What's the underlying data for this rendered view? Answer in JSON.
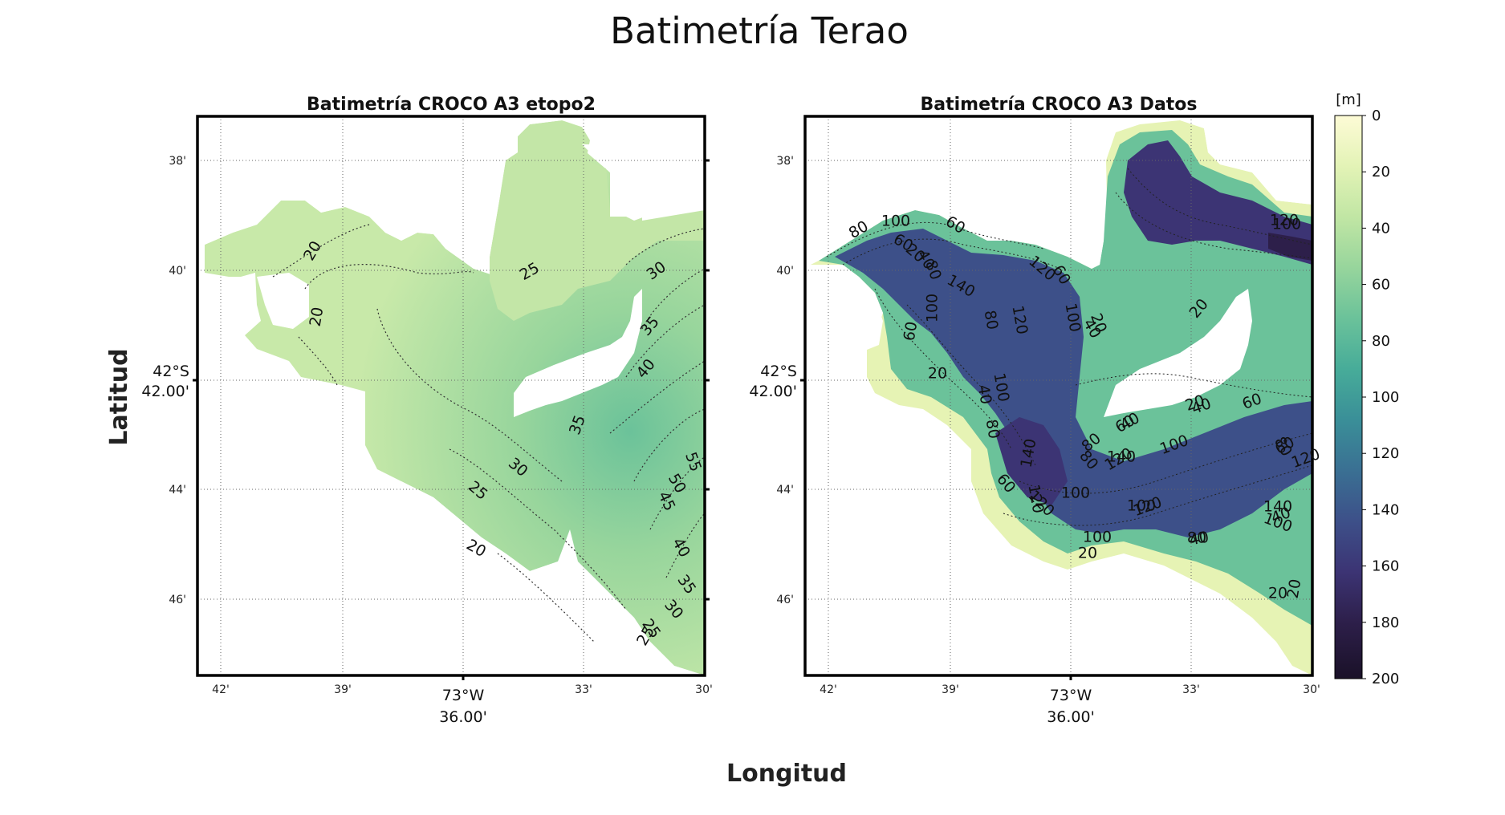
{
  "figure": {
    "title": "Batimetría Terao",
    "xlabel": "Longitud",
    "ylabel": "Latitud"
  },
  "panels": [
    {
      "title": "Batimetría CROCO A3 etopo2",
      "x_ticks": [
        "42'",
        "39'",
        "33'",
        "30'"
      ],
      "x_center_label": [
        "73°W",
        "36.00'"
      ],
      "y_ticks": [
        "38'",
        "40'",
        "44'",
        "46'"
      ],
      "y_center_label": [
        "42°S",
        "42.00'"
      ],
      "contour_labels": [
        "20",
        "25",
        "30",
        "20",
        "25",
        "35",
        "40",
        "35",
        "30",
        "25",
        "20",
        "55",
        "50",
        "45",
        "40",
        "35",
        "30",
        "25"
      ]
    },
    {
      "title": "Batimetría CROCO A3 Datos",
      "x_ticks": [
        "42'",
        "39'",
        "33'",
        "30'"
      ],
      "x_center_label": [
        "73°W",
        "36.00'"
      ],
      "y_ticks": [
        "38'",
        "40'",
        "44'",
        "46'"
      ],
      "y_center_label": [
        "42°S",
        "42.00'"
      ],
      "contour_labels": [
        "80",
        "100",
        "60",
        "60",
        "20",
        "40",
        "80",
        "100",
        "140",
        "80",
        "120",
        "120",
        "60",
        "100",
        "40",
        "20",
        "60",
        "20",
        "40",
        "100",
        "80",
        "140",
        "120",
        "80",
        "100",
        "60",
        "120",
        "100",
        "140",
        "120",
        "100",
        "80",
        "60",
        "40",
        "20",
        "100",
        "120",
        "20",
        "40",
        "60",
        "80",
        "60",
        "40",
        "80",
        "40",
        "20",
        "20",
        "120",
        "100",
        "140",
        "120",
        "100",
        "20"
      ]
    }
  ],
  "colorbar": {
    "unit": "[m]",
    "ticks": [
      "0",
      "20",
      "40",
      "60",
      "80",
      "100",
      "120",
      "140",
      "160",
      "180",
      "200"
    ],
    "min": 0,
    "max": 200,
    "colors": [
      "#fdfbd6",
      "#e3f3b6",
      "#c1e6a4",
      "#97d59c",
      "#6bc29a",
      "#47ac99",
      "#3a8f98",
      "#3a7093",
      "#3d5089",
      "#3c3474",
      "#2d1f4a",
      "#1a1128"
    ]
  },
  "chart_data": {
    "type": "heatmap",
    "title": "Batimetría Terao",
    "xlabel": "Longitud",
    "ylabel": "Latitud",
    "x_ticks": [
      "42'",
      "39'",
      "36.00'",
      "33'",
      "30'"
    ],
    "y_ticks": [
      "38'",
      "40'",
      "42.00'",
      "44'",
      "46'"
    ],
    "colorbar_range": [
      0,
      200
    ],
    "colorbar_unit": "[m]",
    "series": [
      {
        "name": "Batimetría CROCO A3 etopo2",
        "contour_levels": [
          20,
          25,
          30,
          35,
          40,
          45,
          50,
          55
        ]
      },
      {
        "name": "Batimetría CROCO A3 Datos",
        "contour_levels": [
          20,
          40,
          60,
          80,
          100,
          120,
          140,
          160
        ]
      }
    ]
  }
}
